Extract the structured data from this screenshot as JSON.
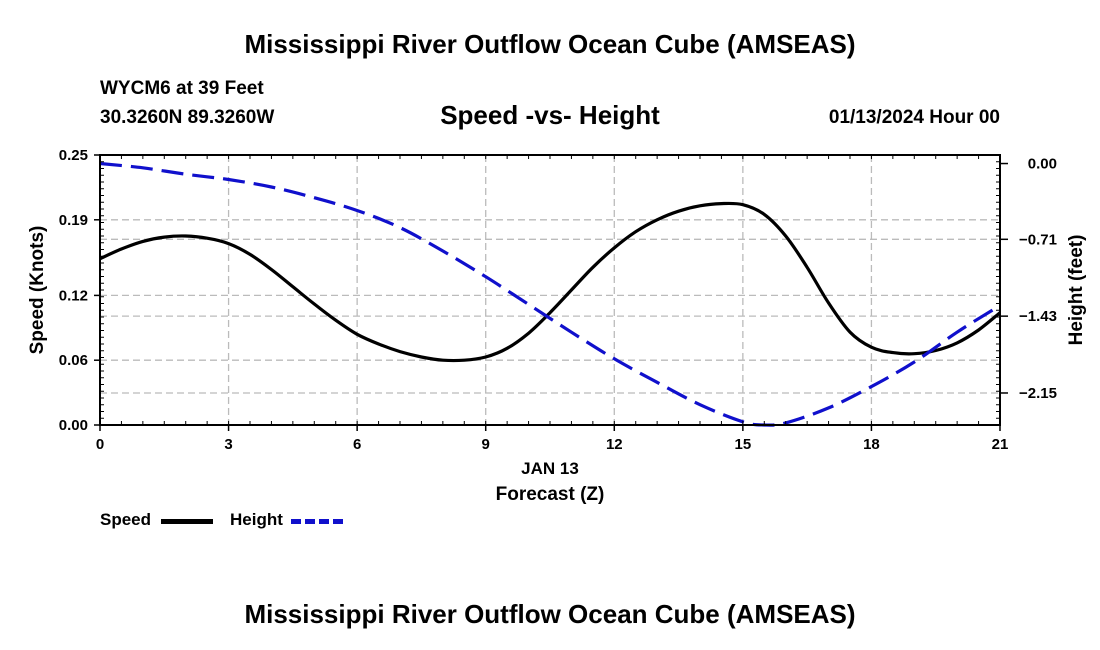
{
  "header": {
    "title": "Mississippi River Outflow Ocean Cube (AMSEAS)",
    "station": "WYCM6 at 39 Feet",
    "coords": "30.3260N  89.3260W",
    "datetime": "01/13/2024 Hour 00"
  },
  "footer": {
    "title": "Mississippi River Outflow Ocean Cube (AMSEAS)"
  },
  "legend": {
    "speed_label": "Speed",
    "height_label": "Height"
  },
  "colors": {
    "speed": "#000000",
    "height": "#1010cc",
    "grid": "#bbbbbb"
  },
  "chart_data": {
    "type": "line",
    "title": "Speed -vs- Height",
    "xlabel": "Forecast (Z)",
    "xlabel_date": "JAN 13",
    "ylabel": "Speed (Knots)",
    "y2label": "Height (feet)",
    "xlim": [
      0,
      21
    ],
    "ylim": [
      0,
      0.25
    ],
    "y2lim": [
      -2.45,
      0.08
    ],
    "x_ticks": [
      0,
      3,
      6,
      9,
      12,
      15,
      18,
      21
    ],
    "x_tick_labels": [
      "0",
      "3",
      "6",
      "9",
      "12",
      "15",
      "18",
      "21"
    ],
    "y_ticks": [
      0.0,
      0.06,
      0.12,
      0.19,
      0.25
    ],
    "y_tick_labels": [
      "0.00",
      "0.06",
      "0.12",
      "0.19",
      "0.25"
    ],
    "y2_ticks": [
      0.0,
      -0.71,
      -1.43,
      -2.15
    ],
    "y2_tick_labels": [
      "0.00",
      "−0.71",
      "−1.43",
      "−2.15"
    ],
    "series": [
      {
        "name": "Speed",
        "axis": "left",
        "style": "solid",
        "x": [
          0,
          0.5,
          1,
          1.5,
          2,
          2.5,
          3,
          3.5,
          4,
          4.5,
          5,
          5.5,
          6,
          6.5,
          7,
          7.5,
          8,
          8.5,
          9,
          9.5,
          10,
          10.5,
          11,
          11.5,
          12,
          12.5,
          13,
          13.5,
          14,
          14.5,
          15,
          15.5,
          16,
          16.5,
          17,
          17.5,
          18,
          18.5,
          19,
          19.5,
          20,
          20.5,
          21
        ],
        "values": [
          0.154,
          0.163,
          0.17,
          0.174,
          0.175,
          0.173,
          0.168,
          0.158,
          0.144,
          0.128,
          0.112,
          0.097,
          0.084,
          0.075,
          0.068,
          0.063,
          0.06,
          0.06,
          0.063,
          0.071,
          0.085,
          0.104,
          0.125,
          0.146,
          0.164,
          0.179,
          0.19,
          0.198,
          0.203,
          0.205,
          0.204,
          0.195,
          0.175,
          0.146,
          0.113,
          0.086,
          0.072,
          0.067,
          0.066,
          0.069,
          0.076,
          0.088,
          0.104
        ]
      },
      {
        "name": "Height",
        "axis": "right",
        "style": "dashed",
        "x": [
          0,
          1,
          2,
          3,
          4,
          5,
          6,
          7,
          8,
          9,
          10,
          11,
          12,
          13,
          14,
          15,
          15.5,
          16,
          17,
          18,
          19,
          20,
          21
        ],
        "values": [
          0.0,
          -0.04,
          -0.1,
          -0.15,
          -0.22,
          -0.32,
          -0.44,
          -0.6,
          -0.82,
          -1.06,
          -1.32,
          -1.58,
          -1.83,
          -2.05,
          -2.26,
          -2.42,
          -2.45,
          -2.43,
          -2.29,
          -2.09,
          -1.86,
          -1.58,
          -1.33
        ]
      }
    ]
  }
}
